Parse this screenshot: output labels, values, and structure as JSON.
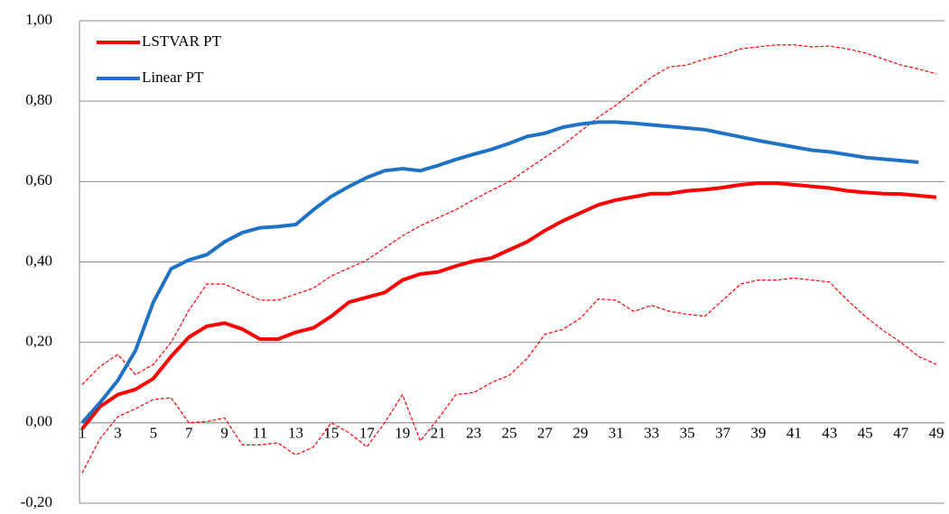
{
  "chart_data": {
    "type": "line",
    "categories": [
      "1",
      null,
      "3",
      null,
      "5",
      null,
      "7",
      null,
      "9",
      null,
      "11",
      null,
      "13",
      null,
      "15",
      null,
      "17",
      null,
      "19",
      null,
      "21",
      null,
      "23",
      null,
      "25",
      null,
      "27",
      null,
      "29",
      null,
      "31",
      null,
      "33",
      null,
      "35",
      null,
      "37",
      null,
      "39",
      null,
      "41",
      null,
      "43",
      null,
      "45",
      null,
      "47",
      null,
      "49"
    ],
    "series": [
      {
        "color": "#ff0000",
        "dashed": true,
        "values": [
          0.095,
          0.14,
          0.17,
          0.12,
          0.145,
          0.2,
          0.28,
          0.345,
          0.345,
          0.325,
          0.305,
          0.305,
          0.32,
          0.335,
          0.365,
          0.385,
          0.405,
          0.435,
          0.465,
          0.49,
          0.51,
          0.53,
          0.555,
          0.578,
          0.6,
          0.63,
          0.66,
          0.69,
          0.725,
          0.76,
          0.79,
          0.825,
          0.86,
          0.885,
          0.89,
          0.905,
          0.915,
          0.93,
          0.935,
          0.94,
          0.94,
          0.935,
          0.937,
          0.93,
          0.92,
          0.905,
          0.89,
          0.88,
          0.868
        ]
      },
      {
        "color": "#ff0000",
        "dashed": true,
        "values": [
          -0.125,
          -0.04,
          0.015,
          0.035,
          0.058,
          0.062,
          0.0,
          0.003,
          0.012,
          -0.055,
          -0.055,
          -0.05,
          -0.08,
          -0.06,
          0.0,
          -0.025,
          -0.06,
          0.0,
          0.07,
          -0.045,
          0.01,
          0.07,
          0.075,
          0.1,
          0.118,
          0.16,
          0.22,
          0.232,
          0.26,
          0.308,
          0.305,
          0.277,
          0.292,
          0.277,
          0.27,
          0.265,
          0.305,
          0.345,
          0.355,
          0.355,
          0.36,
          0.355,
          0.35,
          0.305,
          0.265,
          0.23,
          0.2,
          0.165,
          0.145
        ]
      },
      {
        "name": "LSTVAR PT",
        "color": "#ff0000",
        "values": [
          -0.015,
          0.04,
          0.07,
          0.083,
          0.11,
          0.165,
          0.213,
          0.24,
          0.248,
          0.233,
          0.208,
          0.208,
          0.225,
          0.236,
          0.265,
          0.3,
          0.312,
          0.324,
          0.355,
          0.37,
          0.375,
          0.39,
          0.402,
          0.41,
          0.43,
          0.45,
          0.478,
          0.502,
          0.522,
          0.542,
          0.554,
          0.562,
          0.57,
          0.57,
          0.577,
          0.58,
          0.585,
          0.592,
          0.596,
          0.596,
          0.592,
          0.588,
          0.584,
          0.577,
          0.573,
          0.57,
          0.569,
          0.565,
          0.561
        ]
      },
      {
        "name": "Linear PT",
        "color": "#1f72c4",
        "values": [
          0.0,
          0.05,
          0.105,
          0.18,
          0.3,
          0.383,
          0.405,
          0.418,
          0.45,
          0.473,
          0.485,
          0.488,
          0.493,
          0.53,
          0.563,
          0.588,
          0.61,
          0.627,
          0.632,
          0.627,
          0.64,
          0.655,
          0.668,
          0.68,
          0.695,
          0.712,
          0.72,
          0.735,
          0.743,
          0.748,
          0.748,
          0.745,
          0.741,
          0.737,
          0.733,
          0.729,
          0.72,
          0.711,
          0.702,
          0.694,
          0.686,
          0.678,
          0.674,
          0.667,
          0.66,
          0.656,
          0.652,
          0.648,
          null
        ]
      }
    ],
    "ylim": [
      -0.2,
      1.0
    ],
    "yticks": [
      {
        "value": -0.2,
        "label": "-0,20"
      },
      {
        "value": 0,
        "label": "0,00"
      },
      {
        "value": 0.2,
        "label": "0,20"
      },
      {
        "value": 0.4,
        "label": "0,40"
      },
      {
        "value": 0.6,
        "label": "0,60"
      },
      {
        "value": 0.8,
        "label": "0,80"
      },
      {
        "value": 1.0,
        "label": "1,00"
      }
    ],
    "grid": true,
    "legend": "upper-left"
  }
}
